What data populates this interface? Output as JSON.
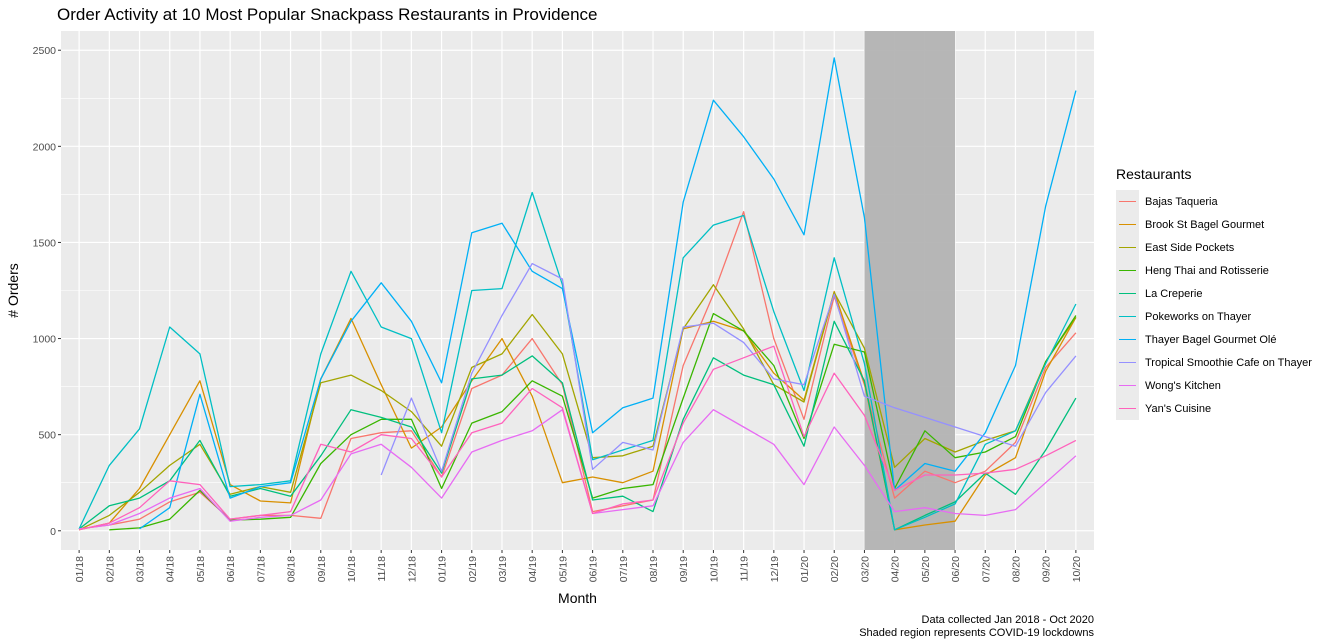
{
  "chart_data": {
    "type": "line",
    "title": "Order Activity at 10 Most Popular Snackpass Restaurants in Providence",
    "xlabel": "Month",
    "ylabel": "# Orders",
    "ylim": [
      -100,
      2600
    ],
    "yticks": [
      0,
      500,
      1000,
      1500,
      2000,
      2500
    ],
    "grid": true,
    "legend_position": "right",
    "legend_title": "Restaurants",
    "categories": [
      "01/18",
      "02/18",
      "03/18",
      "04/18",
      "05/18",
      "06/18",
      "07/18",
      "08/18",
      "09/18",
      "10/18",
      "11/18",
      "12/18",
      "01/19",
      "02/19",
      "03/19",
      "04/19",
      "05/19",
      "06/19",
      "07/19",
      "08/19",
      "09/19",
      "10/19",
      "11/19",
      "12/19",
      "01/20",
      "02/20",
      "03/20",
      "04/20",
      "05/20",
      "06/20",
      "07/20",
      "08/20",
      "09/20",
      "10/20"
    ],
    "shaded_region": {
      "from": "03/20",
      "to": "06/20",
      "color": "#b3b3b3"
    },
    "series": [
      {
        "name": "Bajas Taqueria",
        "color": "#F8766D",
        "values": [
          10,
          30,
          60,
          150,
          200,
          60,
          80,
          80,
          65,
          480,
          510,
          520,
          280,
          740,
          810,
          1000,
          760,
          100,
          130,
          160,
          860,
          1230,
          1660,
          1000,
          580,
          1220,
          760,
          170,
          310,
          250,
          310,
          460,
          850,
          1030
        ]
      },
      {
        "name": "Brook St Bagel Gourmet",
        "color": "#D89000",
        "values": [
          5,
          40,
          220,
          500,
          780,
          240,
          155,
          145,
          790,
          1105,
          760,
          430,
          540,
          780,
          1000,
          700,
          250,
          280,
          250,
          310,
          1050,
          1090,
          1040,
          820,
          680,
          1245,
          770,
          5,
          30,
          50,
          290,
          380,
          830,
          1110
        ]
      },
      {
        "name": "East Side Pockets",
        "color": "#A3A500",
        "values": [
          5,
          80,
          200,
          340,
          450,
          190,
          230,
          200,
          770,
          810,
          730,
          620,
          440,
          850,
          920,
          1125,
          920,
          380,
          390,
          440,
          1050,
          1280,
          1050,
          760,
          670,
          1240,
          950,
          330,
          480,
          410,
          470,
          520,
          880,
          1110
        ]
      },
      {
        "name": "Heng Thai and Rotisserie",
        "color": "#39B600",
        "values": [
          null,
          5,
          15,
          60,
          210,
          55,
          60,
          70,
          350,
          500,
          580,
          580,
          220,
          560,
          620,
          780,
          700,
          170,
          220,
          240,
          690,
          1130,
          1040,
          860,
          480,
          970,
          930,
          220,
          520,
          380,
          410,
          490,
          880,
          1120
        ]
      },
      {
        "name": "La Creperie",
        "color": "#00BF7D",
        "values": [
          10,
          130,
          170,
          260,
          470,
          180,
          220,
          180,
          390,
          630,
          590,
          540,
          300,
          790,
          810,
          910,
          770,
          160,
          180,
          100,
          580,
          900,
          810,
          760,
          440,
          1090,
          780,
          5,
          80,
          150,
          300,
          190,
          420,
          690
        ]
      },
      {
        "name": "Pokeworks on Thayer",
        "color": "#00BFC4",
        "values": [
          10,
          340,
          530,
          1060,
          920,
          230,
          240,
          260,
          920,
          1350,
          1060,
          1000,
          510,
          1250,
          1260,
          1760,
          1280,
          370,
          420,
          470,
          1420,
          1590,
          1640,
          1140,
          730,
          1420,
          870,
          5,
          70,
          140,
          450,
          520,
          870,
          1180
        ]
      },
      {
        "name": "Thayer Bagel Gourmet Olé",
        "color": "#00B0F6",
        "values": [
          null,
          null,
          10,
          120,
          710,
          170,
          230,
          250,
          790,
          1090,
          1290,
          1090,
          770,
          1550,
          1600,
          1350,
          1260,
          510,
          640,
          690,
          1710,
          2240,
          2050,
          1830,
          1540,
          2460,
          1630,
          210,
          350,
          310,
          510,
          860,
          1690,
          2290
        ]
      },
      {
        "name": "Tropical Smoothie Cafe on Thayer",
        "color": "#9590FF",
        "values": [
          null,
          null,
          null,
          null,
          null,
          null,
          null,
          null,
          null,
          null,
          290,
          690,
          310,
          820,
          1120,
          1390,
          1310,
          320,
          460,
          420,
          1060,
          1080,
          980,
          790,
          760,
          1230,
          700,
          640,
          590,
          540,
          490,
          440,
          720,
          910
        ]
      },
      {
        "name": "Wong's Kitchen",
        "color": "#E76BF3",
        "values": [
          10,
          30,
          90,
          170,
          220,
          50,
          70,
          80,
          160,
          400,
          450,
          330,
          170,
          410,
          470,
          520,
          630,
          90,
          110,
          130,
          460,
          630,
          540,
          450,
          240,
          540,
          340,
          100,
          120,
          90,
          80,
          110,
          250,
          390
        ]
      },
      {
        "name": "Yan's Cuisine",
        "color": "#FF62BC",
        "values": [
          5,
          40,
          120,
          260,
          240,
          60,
          80,
          100,
          450,
          410,
          500,
          480,
          280,
          510,
          560,
          740,
          640,
          90,
          140,
          160,
          560,
          840,
          900,
          960,
          490,
          820,
          600,
          210,
          290,
          290,
          300,
          320,
          390,
          470
        ]
      }
    ],
    "captions": [
      "Data collected Jan 2018 - Oct 2020",
      "Shaded region represents COVID-19 lockdowns"
    ]
  }
}
